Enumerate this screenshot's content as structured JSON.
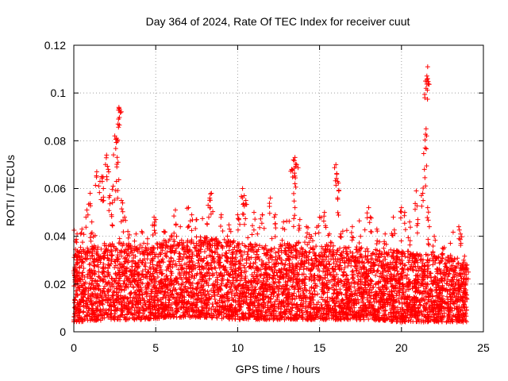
{
  "chart_data": {
    "type": "scatter",
    "title": "Day 364 of 2024, Rate Of TEC Index for receiver cuut",
    "xlabel": "GPS time / hours",
    "ylabel": "ROTI / TECUs",
    "xlim": [
      0,
      25
    ],
    "ylim": [
      0,
      0.12
    ],
    "xticks": [
      0,
      5,
      10,
      15,
      20,
      25
    ],
    "yticks": [
      0,
      0.02,
      0.04,
      0.06,
      0.08,
      0.1,
      0.12
    ],
    "xtick_labels": [
      "0",
      "5",
      "10",
      "15",
      "20",
      "25"
    ],
    "ytick_labels": [
      "0",
      "0.02",
      "0.04",
      "0.06",
      "0.08",
      "0.1",
      "0.12"
    ],
    "grid": true,
    "marker": "+",
    "color": "#ff0000",
    "series": [
      {
        "name": "ROTI",
        "points": [
          [
            0.1,
            0.038
          ],
          [
            0.2,
            0.041
          ],
          [
            0.5,
            0.043
          ],
          [
            0.8,
            0.051
          ],
          [
            1.0,
            0.058
          ],
          [
            1.1,
            0.046
          ],
          [
            1.4,
            0.067
          ],
          [
            1.6,
            0.063
          ],
          [
            1.7,
            0.065
          ],
          [
            1.8,
            0.06
          ],
          [
            2.0,
            0.074
          ],
          [
            2.1,
            0.068
          ],
          [
            2.2,
            0.057
          ],
          [
            2.3,
            0.049
          ],
          [
            2.4,
            0.061
          ],
          [
            2.5,
            0.082
          ],
          [
            2.6,
            0.081
          ],
          [
            2.7,
            0.087
          ],
          [
            2.75,
            0.094
          ],
          [
            2.8,
            0.093
          ],
          [
            2.7,
            0.071
          ],
          [
            2.6,
            0.063
          ],
          [
            2.9,
            0.055
          ],
          [
            3.1,
            0.048
          ],
          [
            3.3,
            0.042
          ],
          [
            3.8,
            0.041
          ],
          [
            4.5,
            0.039
          ],
          [
            4.9,
            0.048
          ],
          [
            5.0,
            0.047
          ],
          [
            5.5,
            0.042
          ],
          [
            6.0,
            0.04
          ],
          [
            6.2,
            0.051
          ],
          [
            6.5,
            0.044
          ],
          [
            7.0,
            0.052
          ],
          [
            7.2,
            0.049
          ],
          [
            7.5,
            0.047
          ],
          [
            8.2,
            0.053
          ],
          [
            8.3,
            0.056
          ],
          [
            8.4,
            0.058
          ],
          [
            9.0,
            0.049
          ],
          [
            9.5,
            0.043
          ],
          [
            10.0,
            0.049
          ],
          [
            10.3,
            0.06
          ],
          [
            10.4,
            0.057
          ],
          [
            10.5,
            0.055
          ],
          [
            11.0,
            0.05
          ],
          [
            11.5,
            0.049
          ],
          [
            12.0,
            0.056
          ],
          [
            12.3,
            0.049
          ],
          [
            12.8,
            0.046
          ],
          [
            13.3,
            0.068
          ],
          [
            13.4,
            0.072
          ],
          [
            13.5,
            0.073
          ],
          [
            13.6,
            0.07
          ],
          [
            13.5,
            0.062
          ],
          [
            13.5,
            0.052
          ],
          [
            13.8,
            0.047
          ],
          [
            14.2,
            0.044
          ],
          [
            14.5,
            0.04
          ],
          [
            15.0,
            0.048
          ],
          [
            15.3,
            0.05
          ],
          [
            15.6,
            0.041
          ],
          [
            16.0,
            0.07
          ],
          [
            16.05,
            0.066
          ],
          [
            16.1,
            0.063
          ],
          [
            16.1,
            0.056
          ],
          [
            16.3,
            0.041
          ],
          [
            17.0,
            0.044
          ],
          [
            17.5,
            0.04
          ],
          [
            18.0,
            0.052
          ],
          [
            18.1,
            0.048
          ],
          [
            18.5,
            0.043
          ],
          [
            19.0,
            0.041
          ],
          [
            19.5,
            0.048
          ],
          [
            20.0,
            0.052
          ],
          [
            20.2,
            0.05
          ],
          [
            20.5,
            0.046
          ],
          [
            20.9,
            0.059
          ],
          [
            21.0,
            0.047
          ],
          [
            21.3,
            0.058
          ],
          [
            21.4,
            0.068
          ],
          [
            21.45,
            0.077
          ],
          [
            21.5,
            0.085
          ],
          [
            21.5,
            0.102
          ],
          [
            21.55,
            0.105
          ],
          [
            21.6,
            0.106
          ],
          [
            21.6,
            0.111
          ],
          [
            21.6,
            0.052
          ],
          [
            21.7,
            0.044
          ],
          [
            22.0,
            0.04
          ],
          [
            22.5,
            0.035
          ],
          [
            23.0,
            0.032
          ],
          [
            23.5,
            0.044
          ],
          [
            23.6,
            0.041
          ],
          [
            23.8,
            0.03
          ],
          [
            24.0,
            0.028
          ]
        ],
        "baseline_band": [
          [
            0,
            0.008,
            0.025
          ],
          [
            2,
            0.009,
            0.03
          ],
          [
            4,
            0.009,
            0.028
          ],
          [
            6,
            0.01,
            0.03
          ],
          [
            8,
            0.01,
            0.032
          ],
          [
            10,
            0.009,
            0.03
          ],
          [
            12,
            0.009,
            0.028
          ],
          [
            14,
            0.009,
            0.03
          ],
          [
            16,
            0.009,
            0.028
          ],
          [
            18,
            0.009,
            0.027
          ],
          [
            20,
            0.008,
            0.026
          ],
          [
            22,
            0.008,
            0.025
          ],
          [
            24,
            0.008,
            0.022
          ]
        ]
      }
    ]
  }
}
